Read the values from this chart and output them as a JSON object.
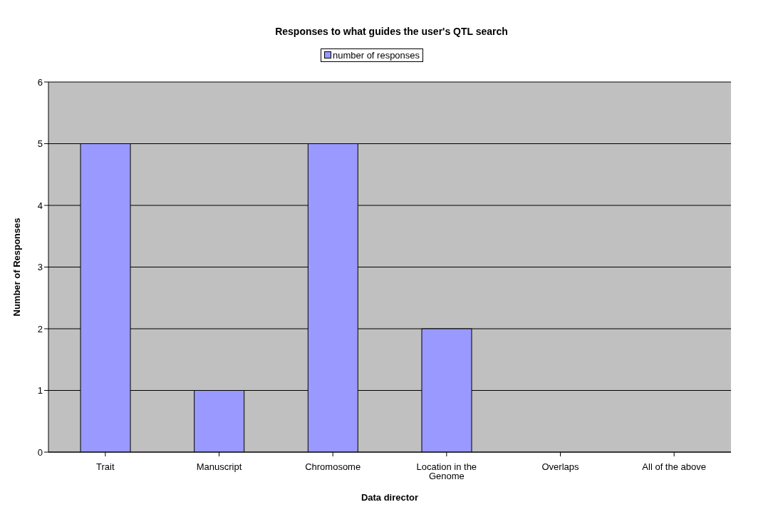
{
  "chart_data": {
    "type": "bar",
    "title": "Responses to what guides the user's QTL search",
    "xlabel": "Data director",
    "ylabel": "Number of Responses",
    "categories": [
      "Trait",
      "Manuscript",
      "Chromosome",
      "Location in the Genome",
      "Overlaps",
      "All of the above"
    ],
    "series": [
      {
        "name": "number of responses",
        "color": "#9999ff",
        "values": [
          5,
          1,
          5,
          2,
          0,
          0
        ]
      }
    ],
    "ylim": [
      0,
      6
    ],
    "yticks": [
      0,
      1,
      2,
      3,
      4,
      5,
      6
    ],
    "grid": "y",
    "legend": "top"
  }
}
